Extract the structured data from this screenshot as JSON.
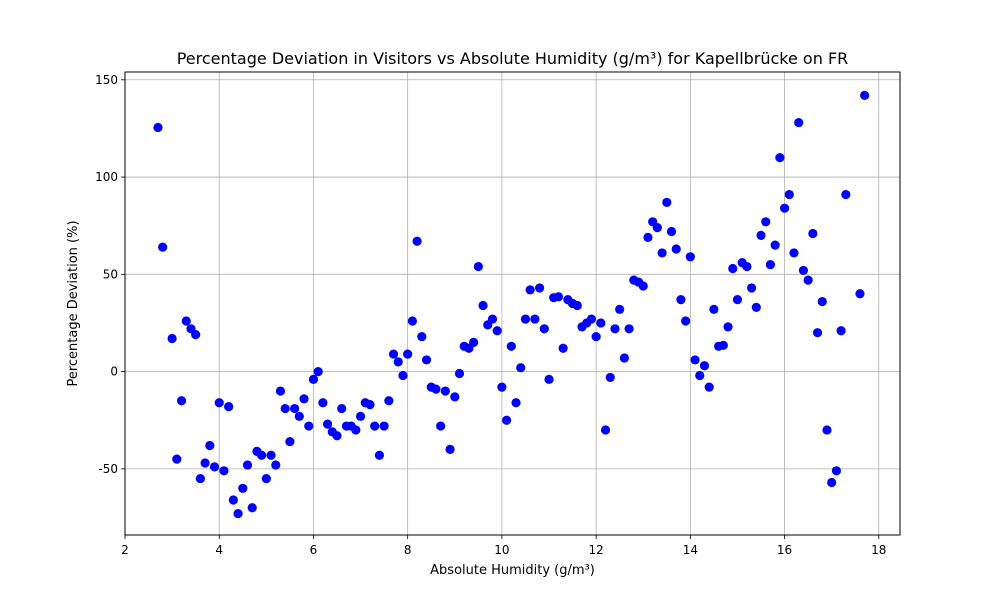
{
  "chart_data": {
    "type": "scatter",
    "title": "Percentage Deviation in Visitors vs Absolute Humidity (g/m³) for Kapellbrücke on FR",
    "xlabel": "Absolute Humidity (g/m³)",
    "ylabel": "Percentage Deviation (%)",
    "xlim": [
      2.0,
      18.45
    ],
    "ylim": [
      -84,
      154
    ],
    "xticks": [
      2,
      4,
      6,
      8,
      10,
      12,
      14,
      16,
      18
    ],
    "yticks": [
      -50,
      0,
      50,
      100,
      150
    ],
    "grid": true,
    "marker_color": "#0000ff",
    "x": [
      2.7,
      2.8,
      3.0,
      3.1,
      3.2,
      3.3,
      3.4,
      3.5,
      3.6,
      3.7,
      3.8,
      3.9,
      4.0,
      4.1,
      4.2,
      4.3,
      4.4,
      4.5,
      4.6,
      4.7,
      4.8,
      4.9,
      5.0,
      5.1,
      5.2,
      5.3,
      5.4,
      5.5,
      5.6,
      5.7,
      5.8,
      5.9,
      6.0,
      6.1,
      6.2,
      6.3,
      6.4,
      6.5,
      6.6,
      6.7,
      6.8,
      6.9,
      7.0,
      7.1,
      7.2,
      7.3,
      7.4,
      7.5,
      7.6,
      7.7,
      7.8,
      7.9,
      8.0,
      8.1,
      8.2,
      8.3,
      8.4,
      8.5,
      8.6,
      8.7,
      8.8,
      8.9,
      9.0,
      9.1,
      9.2,
      9.3,
      9.4,
      9.5,
      9.6,
      9.7,
      9.8,
      9.9,
      10.0,
      10.1,
      10.2,
      10.3,
      10.4,
      10.5,
      10.6,
      10.7,
      10.8,
      10.9,
      11.0,
      11.1,
      11.2,
      11.3,
      11.4,
      11.5,
      11.6,
      11.7,
      11.8,
      11.9,
      12.0,
      12.1,
      12.2,
      12.3,
      12.4,
      12.5,
      12.6,
      12.7,
      12.8,
      12.9,
      13.0,
      13.1,
      13.2,
      13.3,
      13.4,
      13.5,
      13.6,
      13.7,
      13.8,
      13.9,
      14.0,
      14.1,
      14.2,
      14.3,
      14.4,
      14.5,
      14.6,
      14.7,
      14.8,
      14.9,
      15.0,
      15.1,
      15.2,
      15.3,
      15.4,
      15.5,
      15.6,
      15.7,
      15.8,
      15.9,
      16.0,
      16.1,
      16.2,
      16.3,
      16.4,
      16.5,
      16.6,
      16.7,
      16.8,
      16.9,
      17.0,
      17.1,
      17.2,
      17.3,
      17.6,
      17.7
    ],
    "y": [
      125.5,
      64,
      17,
      -45,
      -15,
      26,
      22,
      19,
      -55,
      -47,
      -38,
      -49,
      -16,
      -51,
      -18,
      -66,
      -73,
      -60,
      -48,
      -70,
      -41,
      -43,
      -55,
      -43,
      -48,
      -10,
      -19,
      -36,
      -19,
      -23,
      -14,
      -28,
      -4,
      0,
      -16,
      -27,
      -31,
      -33,
      -19,
      -28,
      -28,
      -30,
      -23,
      -16,
      -17,
      -28,
      -43,
      -28,
      -15,
      9,
      5,
      -2,
      9,
      26,
      67,
      18,
      6,
      -8,
      -9,
      -28,
      -10,
      -40,
      -13,
      -1,
      13,
      12,
      15,
      54,
      34,
      24,
      27,
      21,
      -8,
      -25,
      13,
      -16,
      2,
      27,
      42,
      27,
      43,
      22,
      -4,
      38,
      38.5,
      12,
      37,
      35,
      34,
      23,
      25,
      27,
      18,
      25,
      -30,
      -3,
      22,
      32,
      7,
      22,
      47,
      46,
      44,
      69,
      77,
      74,
      61,
      87,
      72,
      63,
      37,
      26,
      59,
      6,
      -2,
      3,
      -8,
      32,
      13,
      13.5,
      23,
      53,
      37,
      56,
      54,
      43,
      33,
      70,
      77,
      55,
      65,
      110,
      84,
      91,
      61,
      128,
      52,
      47,
      71,
      20,
      36,
      -30,
      -57,
      -51,
      21,
      91,
      40,
      142
    ]
  }
}
